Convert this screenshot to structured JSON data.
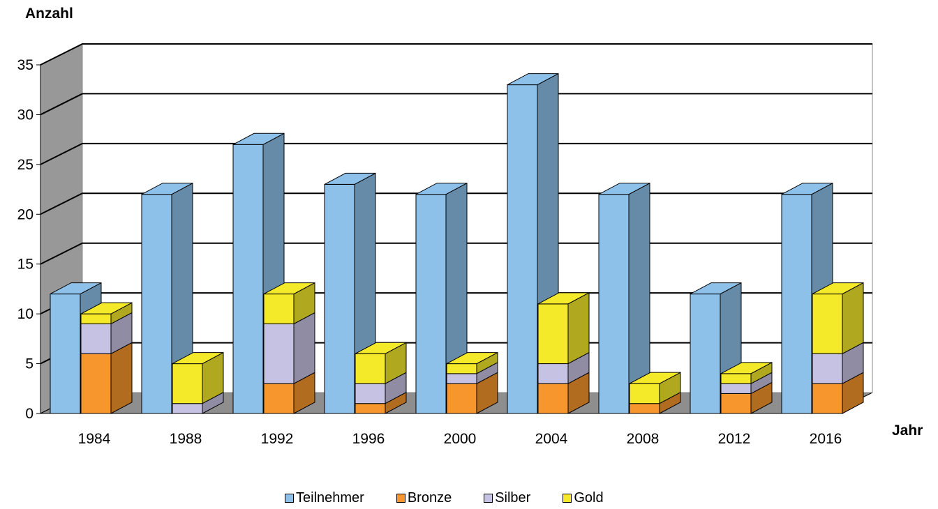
{
  "chart_data": {
    "type": "bar",
    "title": "",
    "ylabel": "Anzahl",
    "xlabel": "Jahr",
    "ylim": [
      0,
      35
    ],
    "yticks": [
      0,
      5,
      10,
      15,
      20,
      25,
      30,
      35
    ],
    "grid": true,
    "style": "3d-column",
    "legend_position": "bottom",
    "categories": [
      "1984",
      "1988",
      "1992",
      "1996",
      "2000",
      "2004",
      "2008",
      "2012",
      "2016"
    ],
    "series": [
      {
        "name": "Teilnehmer",
        "color": "#8EC1EA",
        "values": [
          12,
          22,
          27,
          23,
          22,
          33,
          22,
          12,
          22
        ]
      },
      {
        "name": "Bronze",
        "color": "#F7962C",
        "values": [
          6,
          0,
          3,
          1,
          3,
          3,
          1,
          2,
          3
        ]
      },
      {
        "name": "Silber",
        "color": "#C6C2E3",
        "values": [
          3,
          1,
          6,
          2,
          1,
          2,
          0,
          1,
          3
        ]
      },
      {
        "name": "Gold",
        "color": "#F4EA2A",
        "values": [
          1,
          4,
          3,
          3,
          1,
          6,
          2,
          1,
          6
        ]
      }
    ],
    "stacks": [
      [
        "Teilnehmer"
      ],
      [
        "Bronze",
        "Silber",
        "Gold"
      ]
    ]
  }
}
